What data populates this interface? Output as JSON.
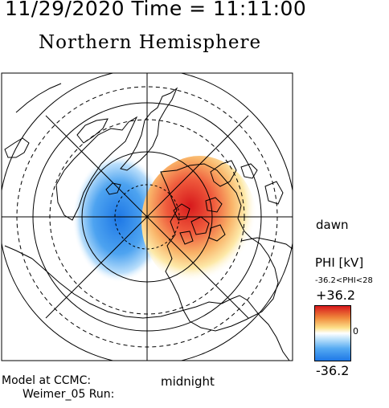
{
  "header": {
    "datetime": "11/29/2020 Time = 11:11:00",
    "hemisphere": "Northern Hemisphere"
  },
  "labels": {
    "dawn": "dawn",
    "midnight": "midnight"
  },
  "footer": {
    "model_line1": "Model at CCMC:",
    "model_line2": "Weimer_05 Run:"
  },
  "colorbar": {
    "title": "PHI [kV]",
    "range_text": "-36.2<PHI<28",
    "max_label": "+36.2",
    "zero_label": "0",
    "min_label": "-36.2",
    "colors": {
      "positive": "#d7191c",
      "mid": "#ffffff",
      "negative": "#1e78e6"
    }
  },
  "map": {
    "projection": "polar, north pole centered, midnight at bottom, dawn at right",
    "features": [
      "coastlines",
      "latitude circles",
      "meridian lines",
      "potential cells"
    ],
    "cells": [
      {
        "name": "negative potential cell",
        "side": "dusk",
        "color": "#1e78e6"
      },
      {
        "name": "positive potential cell",
        "side": "dawn",
        "color": "#d7191c"
      }
    ]
  }
}
